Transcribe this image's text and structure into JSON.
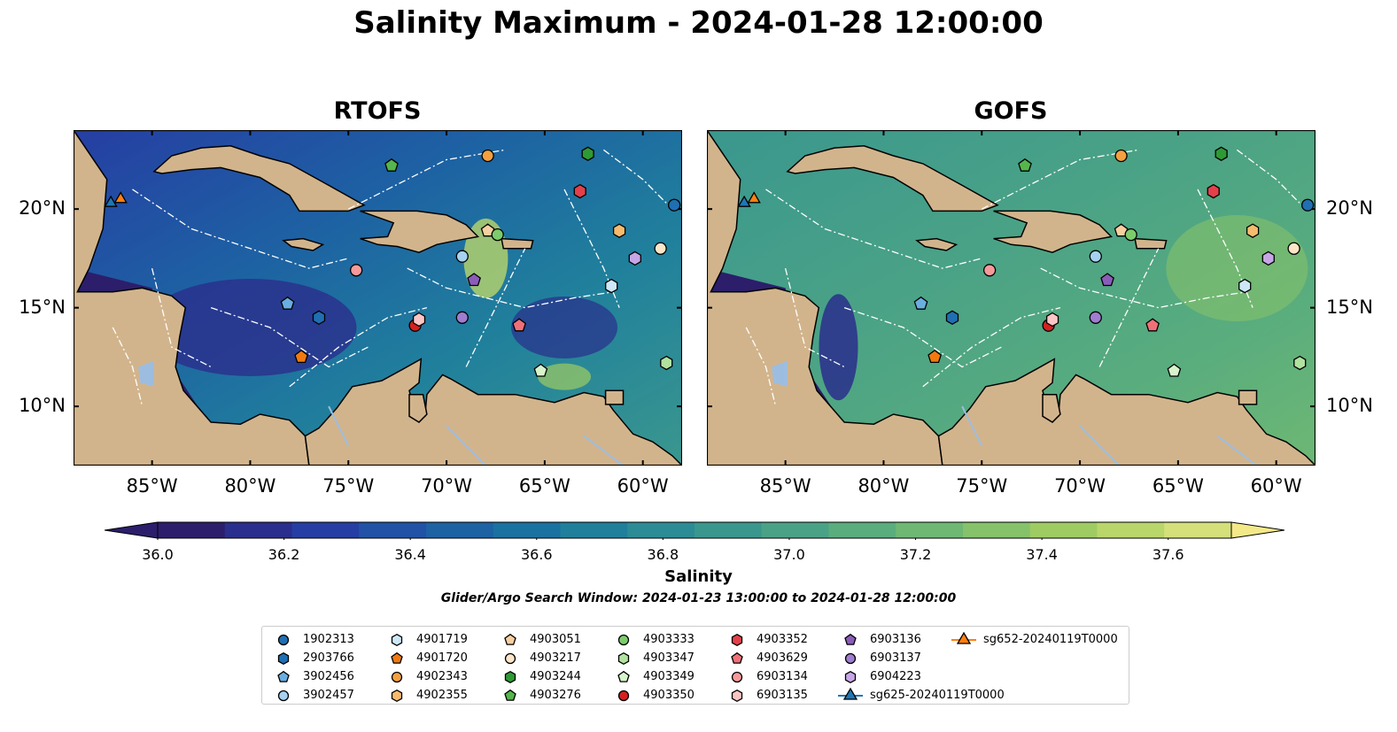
{
  "title": "Salinity Maximum - 2024-01-28 12:00:00",
  "panels": [
    {
      "id": "rtofs",
      "title": "RTOFS"
    },
    {
      "id": "gofs",
      "title": "GOFS"
    }
  ],
  "map_extent": {
    "lon": [
      -89,
      -58
    ],
    "lat": [
      7,
      24
    ]
  },
  "lon_ticks": [
    "85°W",
    "80°W",
    "75°W",
    "70°W",
    "65°W",
    "60°W"
  ],
  "lon_tick_values": [
    -85,
    -80,
    -75,
    -70,
    -65,
    -60
  ],
  "lat_ticks": [
    "20°N",
    "15°N",
    "10°N"
  ],
  "lat_tick_values": [
    20,
    15,
    10
  ],
  "colorbar": {
    "label": "Salinity",
    "ticks": [
      "36.0",
      "36.2",
      "36.4",
      "36.6",
      "36.8",
      "37.0",
      "37.2",
      "37.4",
      "37.6"
    ],
    "range": [
      36.0,
      37.6
    ],
    "extend": "both",
    "colors": [
      "#2c1e6b",
      "#2a2e8c",
      "#263ea3",
      "#2152a6",
      "#1d62a3",
      "#1a72a0",
      "#20809c",
      "#2b8c96",
      "#3a978e",
      "#4aa286",
      "#5aad7d",
      "#6eb874",
      "#85c26a",
      "#9ecc62",
      "#b9d66a",
      "#d5e07a",
      "#f4e989"
    ]
  },
  "search_window": "Glider/Argo Search Window: 2024-01-23 13:00:00 to 2024-01-28 12:00:00",
  "legend": [
    {
      "label": "1902313",
      "shape": "circle",
      "color": "#1f6fb2"
    },
    {
      "label": "2903766",
      "shape": "hexagon",
      "color": "#1f6fb2"
    },
    {
      "label": "3902456",
      "shape": "pentagon",
      "color": "#6aaee0"
    },
    {
      "label": "3902457",
      "shape": "circle",
      "color": "#a6d1f0"
    },
    {
      "label": "4901719",
      "shape": "hexagon",
      "color": "#cfe8f8"
    },
    {
      "label": "4901720",
      "shape": "pentagon",
      "color": "#f07a10"
    },
    {
      "label": "4902343",
      "shape": "circle",
      "color": "#f4a040"
    },
    {
      "label": "4902355",
      "shape": "hexagon",
      "color": "#f7bb6e"
    },
    {
      "label": "4903051",
      "shape": "pentagon",
      "color": "#f8cfa0"
    },
    {
      "label": "4903217",
      "shape": "circle",
      "color": "#fde5c8"
    },
    {
      "label": "4903244",
      "shape": "hexagon",
      "color": "#2e9a35"
    },
    {
      "label": "4903276",
      "shape": "pentagon",
      "color": "#56b54c"
    },
    {
      "label": "4903333",
      "shape": "circle",
      "color": "#7ccc6c"
    },
    {
      "label": "4903347",
      "shape": "hexagon",
      "color": "#b2e29f"
    },
    {
      "label": "4903349",
      "shape": "pentagon",
      "color": "#d9f3cc"
    },
    {
      "label": "4903350",
      "shape": "circle",
      "color": "#d62020"
    },
    {
      "label": "4903352",
      "shape": "hexagon",
      "color": "#e3404a"
    },
    {
      "label": "4903629",
      "shape": "pentagon",
      "color": "#f07078"
    },
    {
      "label": "6903134",
      "shape": "circle",
      "color": "#f59a9a"
    },
    {
      "label": "6903135",
      "shape": "hexagon",
      "color": "#f9c5c5"
    },
    {
      "label": "6903136",
      "shape": "pentagon",
      "color": "#8b5cb8"
    },
    {
      "label": "6903137",
      "shape": "circle",
      "color": "#a07dd0"
    },
    {
      "label": "6904223",
      "shape": "hexagon",
      "color": "#c7a6e6"
    },
    {
      "label": "sg625-20240119T0000",
      "shape": "triangle-line",
      "color": "#1f77b4"
    },
    {
      "label": "sg652-20240119T0000",
      "shape": "triangle-line",
      "color": "#ff7f0e"
    }
  ],
  "markers": [
    {
      "label": "1902313",
      "lon": -58.4,
      "lat": 20.2
    },
    {
      "label": "2903766",
      "lon": -76.5,
      "lat": 14.5
    },
    {
      "label": "3902456",
      "lon": -78.1,
      "lat": 15.2
    },
    {
      "label": "3902457",
      "lon": -69.2,
      "lat": 17.6
    },
    {
      "label": "4901719",
      "lon": -61.6,
      "lat": 16.1
    },
    {
      "label": "4901720",
      "lon": -77.4,
      "lat": 12.5
    },
    {
      "label": "4902343",
      "lon": -67.9,
      "lat": 22.7
    },
    {
      "label": "4902355",
      "lon": -61.2,
      "lat": 18.9
    },
    {
      "label": "4903051",
      "lon": -67.9,
      "lat": 18.9
    },
    {
      "label": "4903217",
      "lon": -59.1,
      "lat": 18.0
    },
    {
      "label": "4903244",
      "lon": -62.8,
      "lat": 22.8
    },
    {
      "label": "4903276",
      "lon": -72.8,
      "lat": 22.2
    },
    {
      "label": "4903333",
      "lon": -67.4,
      "lat": 18.7
    },
    {
      "label": "4903347",
      "lon": -58.8,
      "lat": 12.2
    },
    {
      "label": "4903349",
      "lon": -65.2,
      "lat": 11.8
    },
    {
      "label": "4903350",
      "lon": -71.6,
      "lat": 14.1
    },
    {
      "label": "4903352",
      "lon": -63.2,
      "lat": 20.9
    },
    {
      "label": "4903629",
      "lon": -66.3,
      "lat": 14.1
    },
    {
      "label": "6903134",
      "lon": -74.6,
      "lat": 16.9
    },
    {
      "label": "6903135",
      "lon": -71.4,
      "lat": 14.4
    },
    {
      "label": "6903136",
      "lon": -68.6,
      "lat": 16.4
    },
    {
      "label": "6903137",
      "lon": -69.2,
      "lat": 14.5
    },
    {
      "label": "6904223",
      "lon": -60.4,
      "lat": 17.5
    },
    {
      "label": "sg625-20240119T0000",
      "lon": -87.1,
      "lat": 20.3
    },
    {
      "label": "sg652-20240119T0000",
      "lon": -86.6,
      "lat": 20.5
    }
  ]
}
